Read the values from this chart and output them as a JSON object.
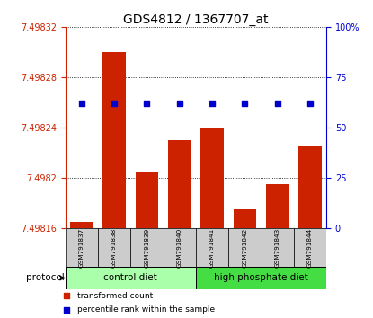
{
  "title": "GDS4812 / 1367707_at",
  "samples": [
    "GSM791837",
    "GSM791838",
    "GSM791839",
    "GSM791840",
    "GSM791841",
    "GSM791842",
    "GSM791843",
    "GSM791844"
  ],
  "transformed_count": [
    7.498165,
    7.4983,
    7.498205,
    7.49823,
    7.49824,
    7.498175,
    7.498195,
    7.498225
  ],
  "percentile_rank": [
    62,
    62,
    62,
    62,
    62,
    62,
    62,
    62
  ],
  "ylim_left": [
    7.49816,
    7.49832
  ],
  "ylim_right": [
    0,
    100
  ],
  "yticks_left": [
    7.49816,
    7.4982,
    7.49824,
    7.49828,
    7.49832
  ],
  "yticks_right": [
    0,
    25,
    50,
    75,
    100
  ],
  "ytick_labels_left": [
    "7.49816",
    "7.4982",
    "7.49824",
    "7.49828",
    "7.49832"
  ],
  "ytick_labels_right": [
    "0",
    "25",
    "50",
    "75",
    "100%"
  ],
  "bar_color": "#cc2200",
  "dot_color": "#0000cc",
  "bg_color": "#ffffff",
  "plot_bg": "#ffffff",
  "control_color": "#aaffaa",
  "highp_color": "#44dd44",
  "sample_bg": "#cccccc",
  "protocol_label": "protocol",
  "group1_label": "control diet",
  "group2_label": "high phosphate diet",
  "group1_count": 4,
  "group2_count": 4,
  "legend_bar_label": "transformed count",
  "legend_dot_label": "percentile rank within the sample",
  "title_fontsize": 10,
  "tick_label_fontsize": 7,
  "bar_width": 0.7
}
